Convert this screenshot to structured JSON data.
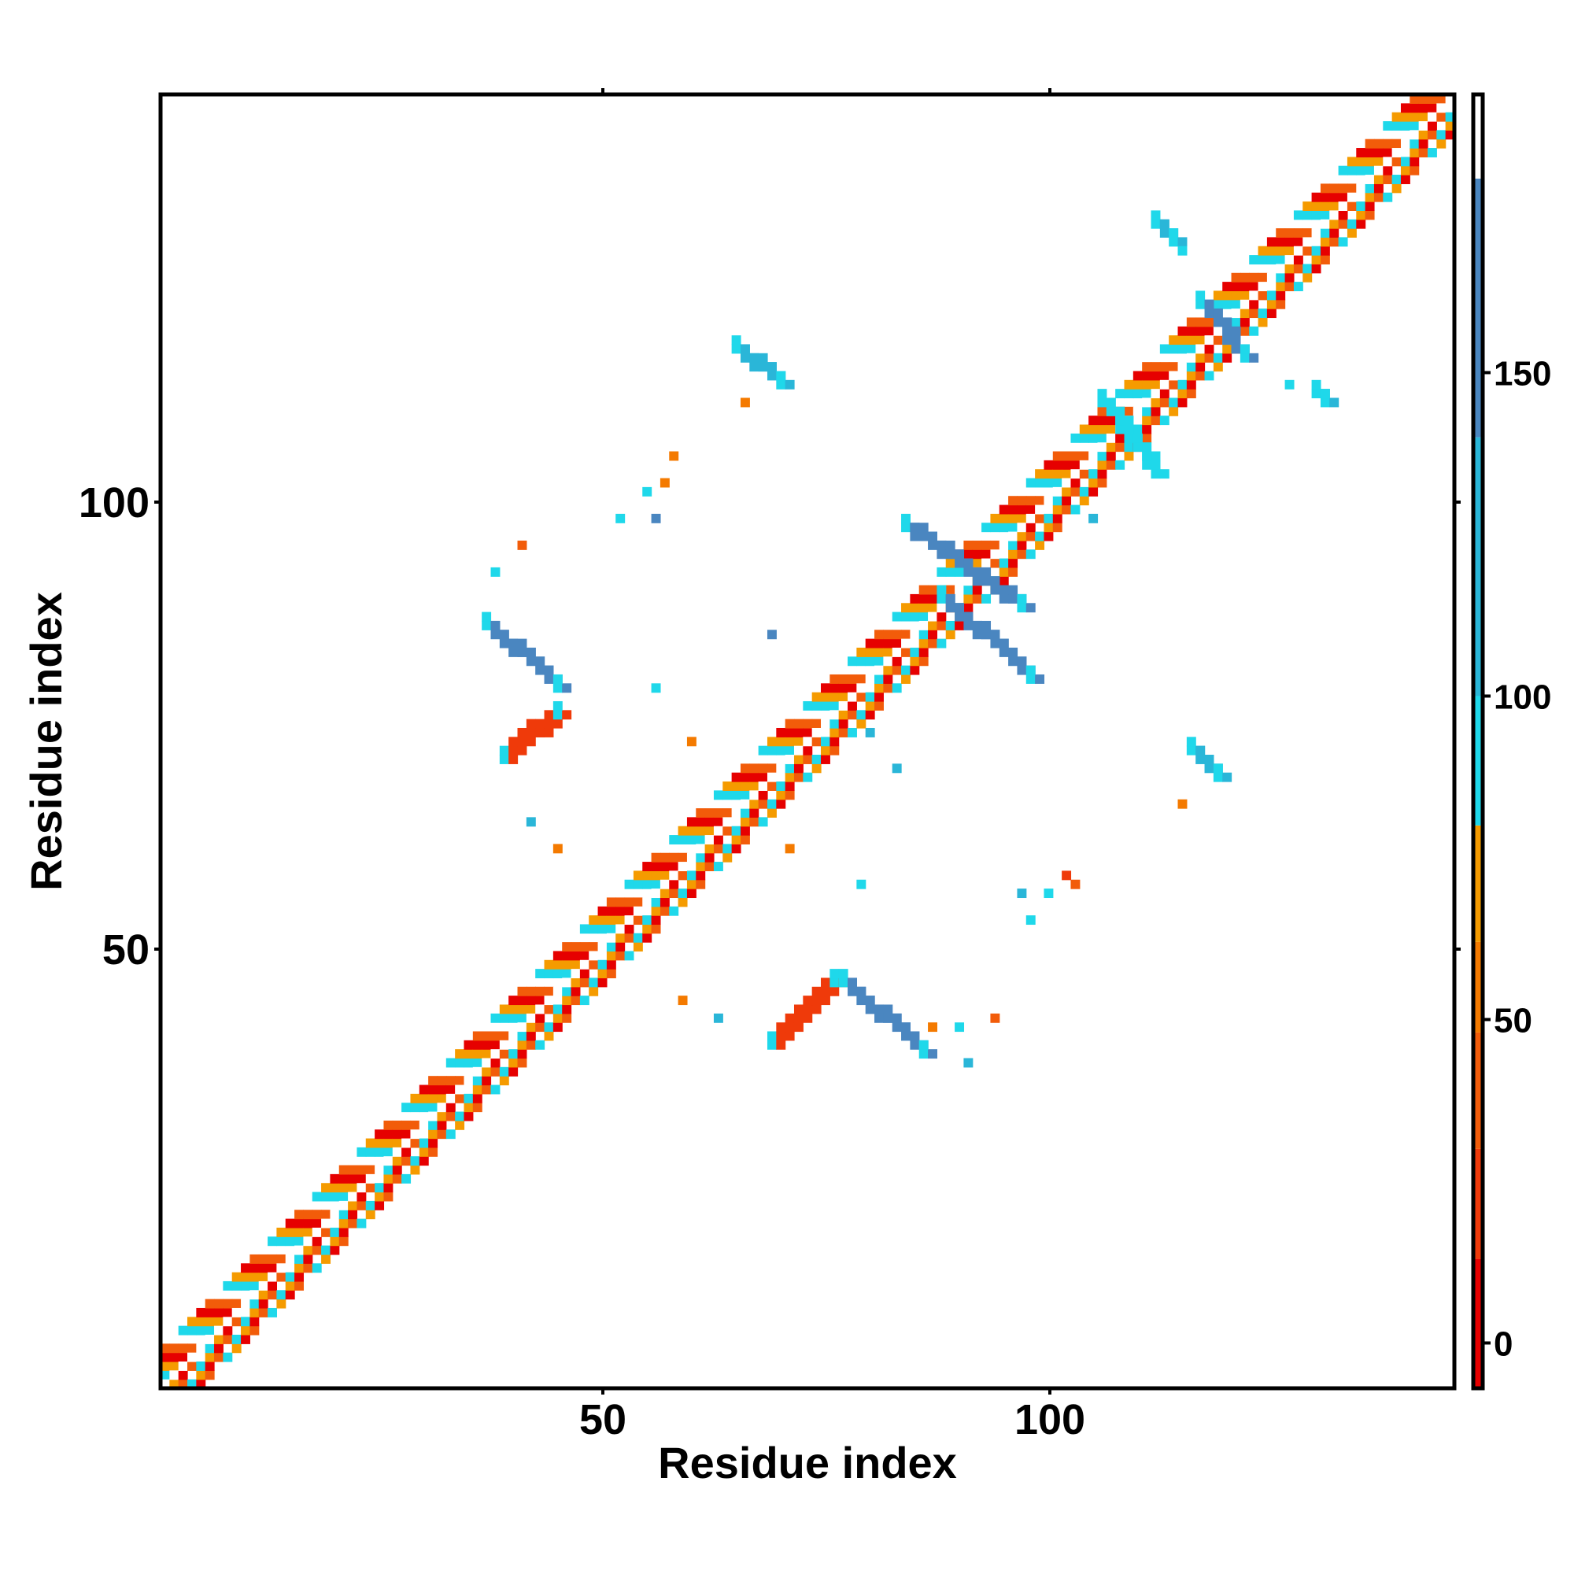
{
  "chart_data": {
    "type": "heatmap",
    "xlabel": "Residue index",
    "ylabel": "Residue index",
    "xlim": [
      1,
      145
    ],
    "ylim": [
      1,
      145
    ],
    "x_ticks": [
      50,
      100
    ],
    "y_ticks": [
      50,
      100
    ],
    "grid": false,
    "legend": "right colorbar",
    "colorbar": {
      "ticks": [
        0,
        50,
        100,
        150
      ],
      "range": [
        -7,
        193
      ],
      "bands": [
        {
          "from": -7,
          "to": 13,
          "color": "#e60000"
        },
        {
          "from": 13,
          "to": 30,
          "color": "#ef3a0a"
        },
        {
          "from": 30,
          "to": 48,
          "color": "#f25c0a"
        },
        {
          "from": 48,
          "to": 62,
          "color": "#f47a00"
        },
        {
          "from": 62,
          "to": 80,
          "color": "#f59b00"
        },
        {
          "from": 80,
          "to": 100,
          "color": "#1fd8ea"
        },
        {
          "from": 100,
          "to": 140,
          "color": "#2ab6d8"
        },
        {
          "from": 140,
          "to": 180,
          "color": "#4a86c0"
        },
        {
          "from": 180,
          "to": 193,
          "color": "#ffffff"
        }
      ]
    },
    "diagonal_band": {
      "from": 1,
      "to": 145,
      "pattern": [
        "#f25c0a",
        "#ffffff",
        "#1fd8ea",
        "#f59b00",
        "#e60000"
      ]
    },
    "contact_segments": [
      {
        "x": [
          84,
          97
        ],
        "y": [
          97,
          88
        ],
        "value": 150,
        "note": "antiparallel strand pair"
      },
      {
        "x": [
          88,
          98
        ],
        "y": [
          89,
          80
        ],
        "value": 150
      },
      {
        "x": [
          37,
          45
        ],
        "y": [
          86,
          79
        ],
        "value": 150
      },
      {
        "x": [
          39,
          45
        ],
        "y": [
          71,
          76
        ],
        "value": 20
      },
      {
        "x": [
          69,
          76
        ],
        "y": [
          39,
          46
        ],
        "value": 20
      },
      {
        "x": [
          77,
          86
        ],
        "y": [
          46,
          38
        ],
        "value": 150
      },
      {
        "x": [
          65,
          70
        ],
        "y": [
          117,
          113
        ],
        "value": 125
      },
      {
        "x": [
          116,
          119
        ],
        "y": [
          72,
          69
        ],
        "value": 125
      },
      {
        "x": [
          112,
          114
        ],
        "y": [
          131,
          129
        ],
        "value": 125
      },
      {
        "x": [
          130,
          131
        ],
        "y": [
          112,
          111
        ],
        "value": 125
      },
      {
        "x": [
          117,
          122
        ],
        "y": [
          122,
          116
        ],
        "value": 150
      },
      {
        "x": [
          106,
          112
        ],
        "y": [
          111,
          103
        ],
        "value": 95
      }
    ],
    "scattered_cells": [
      {
        "x": 55,
        "y": 101,
        "value": 90
      },
      {
        "x": 57,
        "y": 102,
        "value": 60
      },
      {
        "x": 58,
        "y": 105,
        "value": 55
      },
      {
        "x": 52,
        "y": 98,
        "value": 90
      },
      {
        "x": 56,
        "y": 98,
        "value": 140
      },
      {
        "x": 41,
        "y": 95,
        "value": 40
      },
      {
        "x": 38,
        "y": 92,
        "value": 90
      },
      {
        "x": 56,
        "y": 79,
        "value": 90
      },
      {
        "x": 60,
        "y": 73,
        "value": 60
      },
      {
        "x": 42,
        "y": 64,
        "value": 125
      },
      {
        "x": 45,
        "y": 61,
        "value": 60
      },
      {
        "x": 59,
        "y": 44,
        "value": 60
      },
      {
        "x": 63,
        "y": 42,
        "value": 125
      },
      {
        "x": 71,
        "y": 61,
        "value": 60
      },
      {
        "x": 79,
        "y": 57,
        "value": 90
      },
      {
        "x": 97,
        "y": 56,
        "value": 125
      },
      {
        "x": 100,
        "y": 56,
        "value": 90
      },
      {
        "x": 103,
        "y": 57,
        "value": 40
      },
      {
        "x": 98,
        "y": 53,
        "value": 90
      },
      {
        "x": 102,
        "y": 58,
        "value": 20
      },
      {
        "x": 87,
        "y": 41,
        "value": 60
      },
      {
        "x": 90,
        "y": 41,
        "value": 90
      },
      {
        "x": 94,
        "y": 42,
        "value": 40
      },
      {
        "x": 91,
        "y": 37,
        "value": 125
      },
      {
        "x": 115,
        "y": 66,
        "value": 60
      },
      {
        "x": 69,
        "y": 85,
        "value": 140
      },
      {
        "x": 80,
        "y": 74,
        "value": 125
      },
      {
        "x": 83,
        "y": 70,
        "value": 125
      },
      {
        "x": 66,
        "y": 111,
        "value": 60
      },
      {
        "x": 115,
        "y": 128,
        "value": 90
      },
      {
        "x": 127,
        "y": 113,
        "value": 90
      },
      {
        "x": 105,
        "y": 98,
        "value": 125
      }
    ]
  }
}
